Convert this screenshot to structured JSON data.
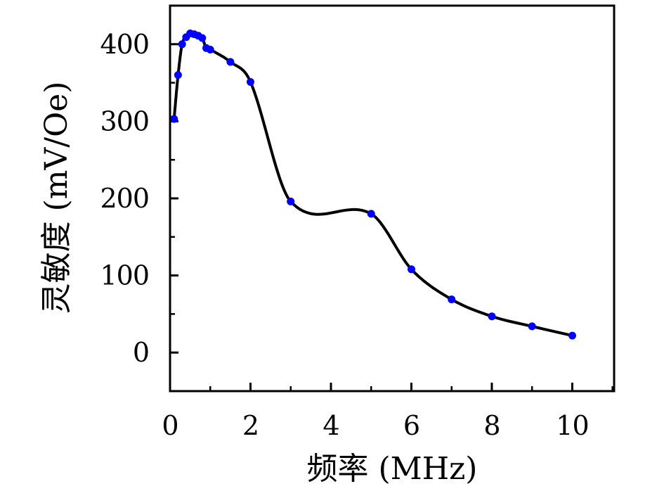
{
  "figure": {
    "background": "#ffffff"
  },
  "chart_data": {
    "type": "line",
    "title": "",
    "xlabel": "频率 (MHz)",
    "ylabel": "灵敏度 (mV/Oe)",
    "x": [
      0.1,
      0.2,
      0.3,
      0.4,
      0.5,
      0.6,
      0.7,
      0.8,
      0.9,
      1.0,
      1.5,
      2.0,
      3.0,
      5.0,
      6.0,
      7.0,
      8.0,
      9.0,
      10.0
    ],
    "y": [
      303,
      360,
      400,
      409,
      414,
      413,
      411,
      408,
      395,
      393,
      377,
      351,
      196,
      180,
      108,
      69,
      47,
      34,
      22
    ],
    "xlim": [
      0,
      11.04
    ],
    "ylim": [
      -50,
      450
    ],
    "xticks_major": [
      0,
      2,
      4,
      6,
      8,
      10
    ],
    "xticks_minor": [
      1,
      3,
      5,
      7,
      9,
      11
    ],
    "yticks_major": [
      0,
      100,
      200,
      300,
      400
    ],
    "yticks_minor": [
      50,
      150,
      250,
      350
    ],
    "grid": false,
    "legend": "none",
    "line_color": "#000000",
    "marker_color": "#0000ff",
    "marker_shape": "circle",
    "curve_style": "smooth-spline"
  }
}
